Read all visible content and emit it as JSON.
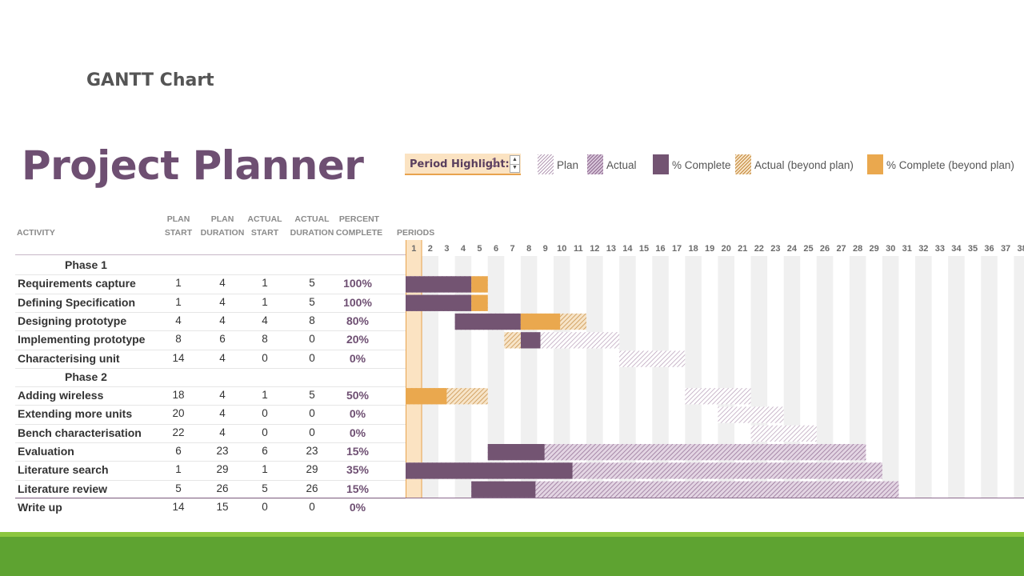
{
  "slide_title": "GANTT Chart",
  "planner_title": "Project Planner",
  "period_highlight": {
    "label": "Period Highlight:",
    "value": "1"
  },
  "legend": [
    {
      "label": "Plan",
      "style": "hatch-plan",
      "icon": "plan-hatch-swatch"
    },
    {
      "label": "Actual",
      "style": "hatch-actual",
      "icon": "actual-hatch-swatch"
    },
    {
      "label": "% Complete",
      "style": "solid-complete",
      "icon": "complete-swatch"
    },
    {
      "label": "Actual (beyond plan)",
      "style": "hatch-beyond",
      "icon": "actual-beyond-swatch"
    },
    {
      "label": "% Complete (beyond plan)",
      "style": "solid-beyond",
      "icon": "complete-beyond-swatch"
    }
  ],
  "columns": {
    "activity": "ACTIVITY",
    "plan_start": [
      "PLAN",
      "START"
    ],
    "plan_duration": [
      "PLAN",
      "DURATION"
    ],
    "actual_start": [
      "ACTUAL",
      "START"
    ],
    "actual_duration": [
      "ACTUAL",
      "DURATION"
    ],
    "percent_complete": [
      "PERCENT",
      "COMPLETE"
    ],
    "periods": "PERIODS"
  },
  "period_count": 38,
  "highlight_period": 1,
  "colors": {
    "title": "#6e4f72",
    "complete": "#735472",
    "beyond": "#eaa84e",
    "highlight": "#fbe3c2",
    "footer_light": "#8cc63f",
    "footer_dark": "#5ea331"
  },
  "rows": [
    {
      "type": "phase",
      "label": "Phase 1"
    },
    {
      "type": "task",
      "activity": "Requirements capture",
      "plan_start": 1,
      "plan_duration": 4,
      "actual_start": 1,
      "actual_duration": 5,
      "percent": "100%"
    },
    {
      "type": "task",
      "activity": "Defining Specification",
      "plan_start": 1,
      "plan_duration": 4,
      "actual_start": 1,
      "actual_duration": 5,
      "percent": "100%"
    },
    {
      "type": "task",
      "activity": "Designing prototype",
      "plan_start": 4,
      "plan_duration": 4,
      "actual_start": 4,
      "actual_duration": 8,
      "percent": "80%"
    },
    {
      "type": "task",
      "activity": "Implementing prototype",
      "plan_start": 8,
      "plan_duration": 6,
      "actual_start": 8,
      "actual_duration": 0,
      "percent": "20%"
    },
    {
      "type": "task",
      "activity": "Characterising unit",
      "plan_start": 14,
      "plan_duration": 4,
      "actual_start": 0,
      "actual_duration": 0,
      "percent": "0%"
    },
    {
      "type": "phase",
      "label": "Phase 2"
    },
    {
      "type": "task",
      "activity": "Adding wireless",
      "plan_start": 18,
      "plan_duration": 4,
      "actual_start": 1,
      "actual_duration": 5,
      "percent": "50%"
    },
    {
      "type": "task",
      "activity": "Extending more units",
      "plan_start": 20,
      "plan_duration": 4,
      "actual_start": 0,
      "actual_duration": 0,
      "percent": "0%"
    },
    {
      "type": "task",
      "activity": "Bench characterisation",
      "plan_start": 22,
      "plan_duration": 4,
      "actual_start": 0,
      "actual_duration": 0,
      "percent": "0%"
    },
    {
      "type": "task",
      "activity": "Evaluation",
      "plan_start": 6,
      "plan_duration": 23,
      "actual_start": 6,
      "actual_duration": 23,
      "percent": "15%"
    },
    {
      "type": "task",
      "activity": "Literature search",
      "plan_start": 1,
      "plan_duration": 29,
      "actual_start": 1,
      "actual_duration": 29,
      "percent": "35%"
    },
    {
      "type": "task",
      "activity": "Literature review",
      "plan_start": 5,
      "plan_duration": 26,
      "actual_start": 5,
      "actual_duration": 26,
      "percent": "15%"
    },
    {
      "type": "task",
      "activity": "Write up",
      "plan_start": 14,
      "plan_duration": 15,
      "actual_start": 0,
      "actual_duration": 0,
      "percent": "0%"
    }
  ]
}
